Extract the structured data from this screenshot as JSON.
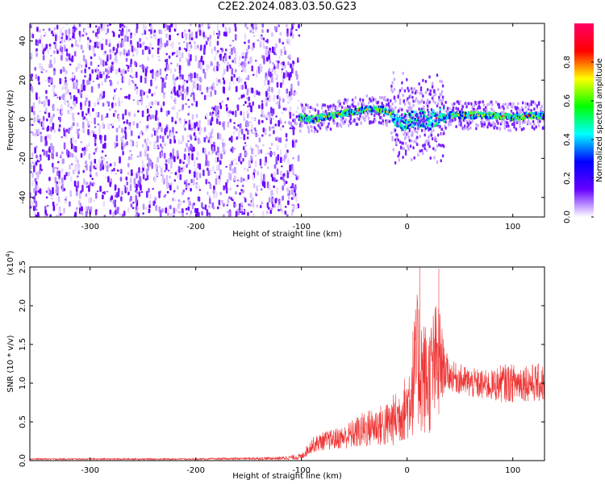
{
  "figure": {
    "title": "C2E2.2024.083.03.50.G23"
  },
  "chart_data": [
    {
      "type": "heatmap",
      "xlabel": "Height of straight line (km)",
      "ylabel": "Frequency (Hz)",
      "xlim": [
        -357,
        130
      ],
      "ylim": [
        -50,
        49
      ],
      "xticks": [
        -300,
        -200,
        -100,
        0,
        100
      ],
      "yticks": [
        -40,
        -20,
        0,
        20,
        40
      ],
      "noise_region_x": [
        -357,
        -102
      ],
      "doppler_track": {
        "x": [
          -102,
          -90,
          -70,
          -50,
          -40,
          -25,
          -15,
          -10,
          -5,
          0,
          5,
          10,
          15,
          20,
          25,
          30,
          40,
          60,
          80,
          100,
          120,
          130
        ],
        "y": [
          1,
          0,
          2,
          4,
          5,
          5,
          3,
          0,
          -2,
          -1,
          0,
          1,
          0,
          -1,
          0,
          1,
          2,
          2,
          2,
          1,
          2,
          2
        ]
      },
      "colorbar": {
        "label": "Normalized spectral amplitude",
        "range": [
          0.0,
          1.0
        ],
        "ticks": [
          0.0,
          0.2,
          0.4,
          0.6,
          0.8
        ],
        "colors": [
          "#ffffff",
          "#6600ff",
          "#0000ff",
          "#00ffff",
          "#00ff00",
          "#ffff00",
          "#ff0000",
          "#ff0066"
        ]
      }
    },
    {
      "type": "line",
      "xlabel": "Height of straight line (km)",
      "ylabel": "SNR (10 * v/v)",
      "yscale_label": "(x10",
      "yscale_exp": "4",
      "xlim": [
        -357,
        130
      ],
      "ylim": [
        0,
        2.5
      ],
      "xticks": [
        -300,
        -200,
        -100,
        0,
        100
      ],
      "yticks": [
        0.0,
        0.5,
        1.0,
        1.5,
        2.0,
        2.5
      ],
      "series": [
        {
          "color": "#ee3333",
          "x": [
            -357,
            -300,
            -200,
            -120,
            -100,
            -90,
            -80,
            -60,
            -50,
            -40,
            -30,
            -20,
            -10,
            0,
            5,
            10,
            15,
            20,
            25,
            30,
            35,
            40,
            50,
            60,
            70,
            80,
            90,
            100,
            110,
            120,
            130
          ],
          "y": [
            0.02,
            0.02,
            0.02,
            0.03,
            0.05,
            0.2,
            0.25,
            0.3,
            0.35,
            0.4,
            0.45,
            0.45,
            0.55,
            0.7,
            1.0,
            1.3,
            1.1,
            1.0,
            1.2,
            1.3,
            1.2,
            1.1,
            1.05,
            1.0,
            0.98,
            0.97,
            1.0,
            1.0,
            1.02,
            1.0,
            1.0
          ],
          "noise": [
            0.01,
            0.01,
            0.01,
            0.02,
            0.04,
            0.1,
            0.12,
            0.15,
            0.2,
            0.25,
            0.25,
            0.3,
            0.35,
            0.45,
            0.7,
            0.9,
            0.8,
            0.7,
            0.8,
            0.8,
            0.3,
            0.2,
            0.2,
            0.2,
            0.2,
            0.2,
            0.25,
            0.25,
            0.25,
            0.25,
            0.25
          ],
          "peaks": [
            2.5,
            2.48
          ]
        }
      ]
    }
  ]
}
